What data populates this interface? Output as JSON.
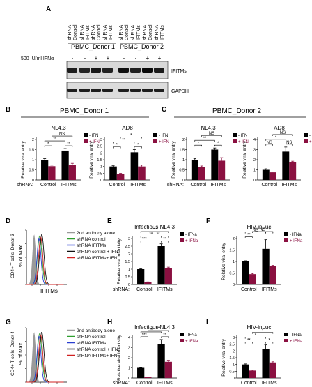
{
  "panels": {
    "A": {
      "letter": "A",
      "lanes": [
        [
          "shRNA",
          "Control"
        ],
        [
          "shRNA",
          "IFITMs"
        ],
        [
          "shRNA",
          "Control"
        ],
        [
          "shRNA",
          "IFITMs"
        ],
        [
          "shRNA",
          "Control"
        ],
        [
          "shRNA",
          "IFITMs"
        ],
        [
          "shRNA",
          "Control"
        ],
        [
          "shRNA",
          "IFITMs"
        ]
      ],
      "donor1_label": "PBMC_Donor 1",
      "donor2_label": "PBMC_Donor 2",
      "ifn_label": "500 IU/ml IFNα",
      "ifn_signs": [
        "-",
        "-",
        "+",
        "+",
        "-",
        "-",
        "+",
        "+"
      ],
      "blot1_label": "IFITMs",
      "blot2_label": "GAPDH"
    },
    "B": {
      "letter": "B",
      "donor_label": "PBMC_Donor 1"
    },
    "C": {
      "letter": "C",
      "donor_label": "PBMC_Donor 2"
    },
    "D": {
      "letter": "D"
    },
    "E": {
      "letter": "E"
    },
    "F": {
      "letter": "F"
    },
    "G": {
      "letter": "G"
    },
    "H": {
      "letter": "H"
    },
    "I": {
      "letter": "I"
    }
  },
  "flow": {
    "D": {
      "ylabel": "% of Max",
      "side_label": "CD4+ T cells_Donor 3",
      "xlabel": "IFITMs",
      "legend": [
        "2nd antibody alone",
        "shRNA control",
        "shRNA IFITMs",
        "shRNA control + IFN",
        "shRNA IFITMs+ IFN"
      ],
      "legend_colors": [
        "#9a9a9a",
        "#2e9e2e",
        "#2a3fd0",
        "#111111",
        "#d02020"
      ]
    },
    "G": {
      "ylabel": "% of Max",
      "side_label": "CD4+ T cells_Donor 4",
      "xlabel": "IFITMs",
      "legend": [
        "2nd antibody alone",
        "shRNA control",
        "shRNA IFITMs",
        "shRNA control + IFN",
        "shRNA IFITMs+ IFN"
      ],
      "legend_colors": [
        "#9a9a9a",
        "#2e9e2e",
        "#2a3fd0",
        "#111111",
        "#d02020"
      ]
    }
  },
  "colors": {
    "minus": "#000000",
    "plus": "#8a1040"
  },
  "chart_data": [
    {
      "id": "B1",
      "type": "bar",
      "title": "NL4.3",
      "ylabel": "Relative viral entry",
      "xaxis_prefix": "shRNA:",
      "categories": [
        "Control",
        "IFITMs"
      ],
      "ylim": [
        0,
        2
      ],
      "yticks": [
        0,
        0.5,
        1,
        1.5,
        2
      ],
      "series": [
        {
          "name": "- IFN",
          "values": [
            1.0,
            1.45
          ],
          "errors": [
            0.05,
            0.1
          ]
        },
        {
          "name": "+ IFN",
          "values": [
            0.68,
            0.75
          ],
          "errors": [
            0.05,
            0.07
          ]
        }
      ],
      "legend": [
        "- IFN",
        "+ IFN"
      ],
      "sig": [
        {
          "a": 0,
          "b": 1,
          "level": 1,
          "label": "*"
        },
        {
          "a": 2,
          "b": 3,
          "level": 1,
          "label": "**"
        },
        {
          "a": 0,
          "b": 2,
          "level": 2,
          "label": "**"
        },
        {
          "a": 1,
          "b": 3,
          "level": 3,
          "label": "NS"
        }
      ]
    },
    {
      "id": "B2",
      "type": "bar",
      "title": "AD8",
      "ylabel": "Relative viral entry",
      "xaxis_prefix": "",
      "categories": [
        "Control",
        "IFITMs"
      ],
      "ylim": [
        0,
        3
      ],
      "yticks": [
        0,
        0.5,
        1,
        1.5,
        2,
        2.5,
        3
      ],
      "series": [
        {
          "name": "- IFN",
          "values": [
            1.0,
            2.05
          ],
          "errors": [
            0.05,
            0.2
          ]
        },
        {
          "name": "+ IFN",
          "values": [
            0.45,
            1.0
          ],
          "errors": [
            0.04,
            0.1
          ]
        }
      ],
      "legend": [
        "- IFN",
        "+ IFN"
      ],
      "sig": [
        {
          "a": 0,
          "b": 1,
          "level": 1,
          "label": "*"
        },
        {
          "a": 2,
          "b": 3,
          "level": 1,
          "label": "*"
        },
        {
          "a": 0,
          "b": 2,
          "level": 2,
          "label": "**"
        },
        {
          "a": 1,
          "b": 3,
          "level": 3,
          "label": "*"
        }
      ]
    },
    {
      "id": "C1",
      "type": "bar",
      "title": "NL4.3",
      "ylabel": "Relative viral entry",
      "xaxis_prefix": "shRNA:",
      "categories": [
        "Control",
        "IFITMs"
      ],
      "ylim": [
        0,
        2
      ],
      "yticks": [
        0,
        0.5,
        1,
        1.5,
        2
      ],
      "series": [
        {
          "name": "- IFN",
          "values": [
            1.0,
            1.5
          ],
          "errors": [
            0.05,
            0.08
          ]
        },
        {
          "name": "+ IFN",
          "values": [
            0.65,
            0.95
          ],
          "errors": [
            0.04,
            0.15
          ]
        }
      ],
      "legend": [
        "- IFN",
        "+ IFN"
      ],
      "sig": [
        {
          "a": 0,
          "b": 1,
          "level": 1,
          "label": "*"
        },
        {
          "a": 2,
          "b": 3,
          "level": 1,
          "label": "*"
        },
        {
          "a": 0,
          "b": 2,
          "level": 2,
          "label": "**"
        },
        {
          "a": 1,
          "b": 3,
          "level": 3,
          "label": "NS"
        }
      ]
    },
    {
      "id": "C2",
      "type": "bar",
      "title": "AD8",
      "ylabel": "Relative viral entry",
      "xaxis_prefix": "",
      "categories": [
        "Control",
        "IFITMs"
      ],
      "ylim": [
        0,
        4
      ],
      "yticks": [
        0,
        1,
        2,
        3,
        4
      ],
      "series": [
        {
          "name": "- IFN",
          "values": [
            1.0,
            2.8
          ],
          "errors": [
            0.1,
            0.45
          ]
        },
        {
          "name": "+ IFN",
          "values": [
            0.75,
            1.75
          ],
          "errors": [
            0.05,
            0.1
          ]
        }
      ],
      "legend": [
        "- IFN",
        "+ IFN"
      ],
      "sig": [
        {
          "a": 0,
          "b": 1,
          "level": 1,
          "label": "NS"
        },
        {
          "a": 2,
          "b": 3,
          "level": 1,
          "label": "NS"
        },
        {
          "a": 0,
          "b": 2,
          "level": 2,
          "label": "*"
        },
        {
          "a": 1,
          "b": 3,
          "level": 3,
          "label": "NS"
        }
      ]
    },
    {
      "id": "E",
      "type": "bar",
      "title": "Infectious NL4.3",
      "ylabel": "Relative viral infectivity",
      "xaxis_prefix": "shRNA:",
      "categories": [
        "Control",
        "IFITMs"
      ],
      "ylim": [
        0,
        3
      ],
      "yticks": [
        0,
        0.5,
        1,
        1.5,
        2,
        2.5,
        3
      ],
      "series": [
        {
          "name": "- IFNa",
          "values": [
            1.0,
            2.5
          ],
          "errors": [
            0.03,
            0.15
          ]
        },
        {
          "name": "+ IFNa",
          "values": [
            0.15,
            1.05
          ],
          "errors": [
            0.02,
            0.08
          ]
        }
      ],
      "legend": [
        "- IFNa",
        "+ IFNa"
      ],
      "sig": [
        {
          "a": 0,
          "b": 1,
          "level": 1,
          "label": "***"
        },
        {
          "a": 2,
          "b": 3,
          "level": 1,
          "label": "**"
        },
        {
          "a": 0,
          "b": 2,
          "level": 2,
          "label": "**"
        },
        {
          "a": 1,
          "b": 3,
          "level": 2,
          "label": "**"
        },
        {
          "a": 0,
          "b": 3,
          "level": 3,
          "label": "***"
        }
      ]
    },
    {
      "id": "F",
      "type": "bar",
      "title": "HIV-inLuc",
      "ylabel": "Relative viral entry",
      "xaxis_prefix": "",
      "categories": [
        "Control",
        "IFITMs"
      ],
      "ylim": [
        0,
        2
      ],
      "yticks": [
        0,
        0.5,
        1,
        1.5,
        2
      ],
      "series": [
        {
          "name": "- IFNa",
          "values": [
            1.0,
            1.55
          ],
          "errors": [
            0.03,
            0.4
          ]
        },
        {
          "name": "+ IFNa",
          "values": [
            0.45,
            0.8
          ],
          "errors": [
            0.03,
            0.03
          ]
        }
      ],
      "legend": [
        "- IFNa",
        "+ IFNa"
      ],
      "sig": [
        {
          "a": 0,
          "b": 1,
          "level": 1,
          "label": "**"
        },
        {
          "a": 0,
          "b": 2,
          "level": 2,
          "label": "NS"
        },
        {
          "a": 2,
          "b": 3,
          "level": 2,
          "label": "*"
        },
        {
          "a": 1,
          "b": 3,
          "level": 3,
          "label": "NS"
        }
      ]
    },
    {
      "id": "H",
      "type": "bar",
      "title": "Infectious NL4.3",
      "ylabel": "Relative viral infectivity",
      "xaxis_prefix": "shRNA:",
      "categories": [
        "Control",
        "IFITMs"
      ],
      "ylim": [
        0,
        4
      ],
      "yticks": [
        0,
        1,
        2,
        3,
        4
      ],
      "series": [
        {
          "name": "- IFNa",
          "values": [
            1.0,
            3.35
          ],
          "errors": [
            0.03,
            0.45
          ]
        },
        {
          "name": "+ IFNa",
          "values": [
            0.08,
            1.6
          ],
          "errors": [
            0.02,
            0.15
          ]
        }
      ],
      "legend": [
        "- IFNa",
        "+ IFNa"
      ],
      "sig": [
        {
          "a": 0,
          "b": 1,
          "level": 1,
          "label": "***"
        },
        {
          "a": 2,
          "b": 3,
          "level": 1,
          "label": "**"
        },
        {
          "a": 0,
          "b": 2,
          "level": 2,
          "label": "**"
        },
        {
          "a": 1,
          "b": 3,
          "level": 3,
          "label": "***"
        }
      ]
    },
    {
      "id": "I",
      "type": "bar",
      "title": "HIV-inLuc",
      "ylabel": "Relative viral entry",
      "xaxis_prefix": "",
      "categories": [
        "Control",
        "IFITMs"
      ],
      "ylim": [
        0,
        3
      ],
      "yticks": [
        0,
        0.5,
        1,
        1.5,
        2,
        2.5,
        3
      ],
      "series": [
        {
          "name": "- IFNa",
          "values": [
            1.0,
            2.15
          ],
          "errors": [
            0.04,
            0.3
          ]
        },
        {
          "name": "+ IFNa",
          "values": [
            0.55,
            1.15
          ],
          "errors": [
            0.03,
            0.05
          ]
        }
      ],
      "legend": [
        "- IFNa",
        "+ IFNa"
      ],
      "sig": [
        {
          "a": 0,
          "b": 1,
          "level": 1,
          "label": "**"
        },
        {
          "a": 2,
          "b": 3,
          "level": 1,
          "label": "*"
        },
        {
          "a": 0,
          "b": 2,
          "level": 2,
          "label": "*"
        },
        {
          "a": 1,
          "b": 3,
          "level": 3,
          "label": "*"
        }
      ]
    }
  ]
}
